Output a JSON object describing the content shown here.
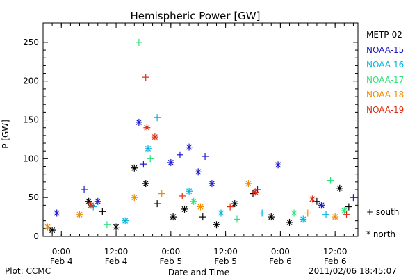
{
  "chart_data": {
    "type": "scatter",
    "title": "Hemispheric Power [GW]",
    "xlabel": "Date and Time",
    "ylabel": "P [GW]",
    "ylim": [
      0,
      275
    ],
    "y_ticks": [
      0,
      50,
      100,
      150,
      200,
      250
    ],
    "xlim": [
      "2011-02-03T20:00",
      "2011-02-06T17:00"
    ],
    "x_ticks": [
      {
        "time": "2011-02-04T00:00",
        "line1": "0:00",
        "line2": "Feb 4"
      },
      {
        "time": "2011-02-04T12:00",
        "line1": "12:00",
        "line2": "Feb 4"
      },
      {
        "time": "2011-02-05T00:00",
        "line1": "0:00",
        "line2": "Feb 5"
      },
      {
        "time": "2011-02-05T12:00",
        "line1": "12:00",
        "line2": "Feb 5"
      },
      {
        "time": "2011-02-06T00:00",
        "line1": "0:00",
        "line2": "Feb 6"
      },
      {
        "time": "2011-02-06T12:00",
        "line1": "12:00",
        "line2": "Feb 6"
      }
    ],
    "legend_position": "right",
    "series": [
      {
        "name": "METP-02",
        "color": "#000000",
        "points": [
          {
            "x": "2011-02-03T22:00",
            "y": 8,
            "h": "north"
          },
          {
            "x": "2011-02-04T06:00",
            "y": 45,
            "h": "north"
          },
          {
            "x": "2011-02-04T09:00",
            "y": 32,
            "h": "south"
          },
          {
            "x": "2011-02-04T12:00",
            "y": 12,
            "h": "north"
          },
          {
            "x": "2011-02-04T16:00",
            "y": 88,
            "h": "north"
          },
          {
            "x": "2011-02-04T18:30",
            "y": 68,
            "h": "north"
          },
          {
            "x": "2011-02-04T21:00",
            "y": 42,
            "h": "south"
          },
          {
            "x": "2011-02-05T00:30",
            "y": 25,
            "h": "north"
          },
          {
            "x": "2011-02-05T03:00",
            "y": 35,
            "h": "north"
          },
          {
            "x": "2011-02-05T07:00",
            "y": 25,
            "h": "south"
          },
          {
            "x": "2011-02-05T10:00",
            "y": 15,
            "h": "north"
          },
          {
            "x": "2011-02-05T14:00",
            "y": 42,
            "h": "north"
          },
          {
            "x": "2011-02-05T18:00",
            "y": 55,
            "h": "south"
          },
          {
            "x": "2011-02-05T22:00",
            "y": 25,
            "h": "north"
          },
          {
            "x": "2011-02-06T02:00",
            "y": 18,
            "h": "north"
          },
          {
            "x": "2011-02-06T08:00",
            "y": 45,
            "h": "south"
          },
          {
            "x": "2011-02-06T13:00",
            "y": 62,
            "h": "north"
          },
          {
            "x": "2011-02-06T15:00",
            "y": 38,
            "h": "south"
          }
        ]
      },
      {
        "name": "NOAA-15",
        "color": "#1a1acc",
        "points": [
          {
            "x": "2011-02-03T23:00",
            "y": 30,
            "h": "north"
          },
          {
            "x": "2011-02-04T05:00",
            "y": 60,
            "h": "south"
          },
          {
            "x": "2011-02-04T08:00",
            "y": 45,
            "h": "north"
          },
          {
            "x": "2011-02-04T17:00",
            "y": 147,
            "h": "north"
          },
          {
            "x": "2011-02-04T18:00",
            "y": 93,
            "h": "south"
          },
          {
            "x": "2011-02-05T00:00",
            "y": 95,
            "h": "north"
          },
          {
            "x": "2011-02-05T02:00",
            "y": 105,
            "h": "south"
          },
          {
            "x": "2011-02-05T04:00",
            "y": 115,
            "h": "north"
          },
          {
            "x": "2011-02-05T06:00",
            "y": 83,
            "h": "north"
          },
          {
            "x": "2011-02-05T07:30",
            "y": 103,
            "h": "south"
          },
          {
            "x": "2011-02-05T09:00",
            "y": 68,
            "h": "north"
          },
          {
            "x": "2011-02-05T19:00",
            "y": 60,
            "h": "south"
          },
          {
            "x": "2011-02-05T23:30",
            "y": 92,
            "h": "north"
          },
          {
            "x": "2011-02-06T09:00",
            "y": 40,
            "h": "north"
          },
          {
            "x": "2011-02-06T16:00",
            "y": 50,
            "h": "south"
          }
        ]
      },
      {
        "name": "NOAA-16",
        "color": "#00b4e0",
        "points": [
          {
            "x": "2011-02-04T07:00",
            "y": 38,
            "h": "south"
          },
          {
            "x": "2011-02-04T14:00",
            "y": 20,
            "h": "north"
          },
          {
            "x": "2011-02-04T19:00",
            "y": 113,
            "h": "north"
          },
          {
            "x": "2011-02-04T21:00",
            "y": 153,
            "h": "south"
          },
          {
            "x": "2011-02-05T04:00",
            "y": 58,
            "h": "north"
          },
          {
            "x": "2011-02-05T11:00",
            "y": 30,
            "h": "north"
          },
          {
            "x": "2011-02-05T20:00",
            "y": 30,
            "h": "south"
          },
          {
            "x": "2011-02-06T05:00",
            "y": 22,
            "h": "north"
          },
          {
            "x": "2011-02-06T10:00",
            "y": 28,
            "h": "south"
          }
        ]
      },
      {
        "name": "NOAA-17",
        "color": "#2ce27a",
        "points": [
          {
            "x": "2011-02-04T10:00",
            "y": 15,
            "h": "south"
          },
          {
            "x": "2011-02-04T17:00",
            "y": 250,
            "h": "south"
          },
          {
            "x": "2011-02-04T19:30",
            "y": 100,
            "h": "south"
          },
          {
            "x": "2011-02-05T05:00",
            "y": 45,
            "h": "north"
          },
          {
            "x": "2011-02-05T14:30",
            "y": 22,
            "h": "south"
          },
          {
            "x": "2011-02-06T03:00",
            "y": 30,
            "h": "north"
          },
          {
            "x": "2011-02-06T11:00",
            "y": 72,
            "h": "south"
          },
          {
            "x": "2011-02-06T14:00",
            "y": 33,
            "h": "north"
          }
        ]
      },
      {
        "name": "NOAA-18",
        "color": "#f08c00",
        "points": [
          {
            "x": "2011-02-03T21:00",
            "y": 12,
            "h": "north"
          },
          {
            "x": "2011-02-04T04:00",
            "y": 28,
            "h": "north"
          },
          {
            "x": "2011-02-04T16:00",
            "y": 50,
            "h": "north"
          },
          {
            "x": "2011-02-04T22:00",
            "y": 55,
            "h": "south"
          },
          {
            "x": "2011-02-05T06:30",
            "y": 38,
            "h": "north"
          },
          {
            "x": "2011-02-05T17:00",
            "y": 68,
            "h": "north"
          },
          {
            "x": "2011-02-06T06:00",
            "y": 30,
            "h": "south"
          },
          {
            "x": "2011-02-06T12:00",
            "y": 25,
            "h": "north"
          }
        ]
      },
      {
        "name": "NOAA-19",
        "color": "#e02a10",
        "points": [
          {
            "x": "2011-02-04T06:30",
            "y": 40,
            "h": "north"
          },
          {
            "x": "2011-02-04T18:30",
            "y": 205,
            "h": "south"
          },
          {
            "x": "2011-02-04T18:45",
            "y": 140,
            "h": "north"
          },
          {
            "x": "2011-02-04T20:30",
            "y": 128,
            "h": "north"
          },
          {
            "x": "2011-02-05T02:30",
            "y": 52,
            "h": "south"
          },
          {
            "x": "2011-02-05T13:00",
            "y": 38,
            "h": "south"
          },
          {
            "x": "2011-02-05T18:30",
            "y": 57,
            "h": "north"
          },
          {
            "x": "2011-02-06T07:00",
            "y": 48,
            "h": "north"
          },
          {
            "x": "2011-02-06T14:30",
            "y": 28,
            "h": "south"
          }
        ]
      }
    ],
    "hemisphere_key": {
      "south": "+ south",
      "north": "* north"
    }
  },
  "footer": {
    "left": "Plot: CCMC",
    "right": "2011/02/06 18:45:07"
  }
}
